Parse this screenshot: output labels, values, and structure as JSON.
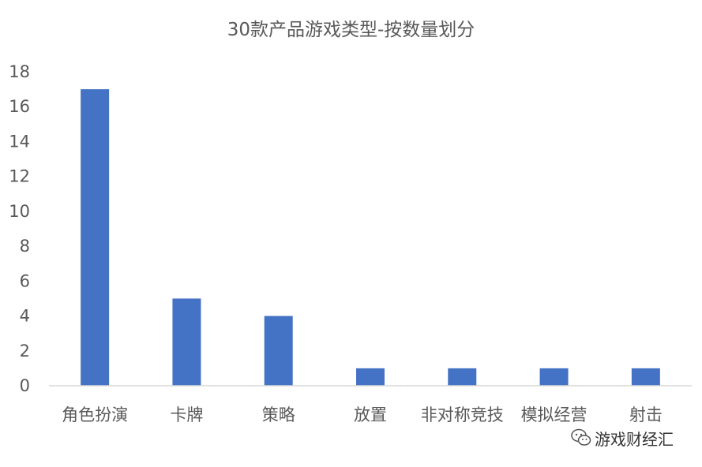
{
  "chart_data": {
    "type": "bar",
    "title": "30款产品游戏类型-按数量划分",
    "categories": [
      "角色扮演",
      "卡牌",
      "策略",
      "放置",
      "非对称竞技",
      "模拟经营",
      "射击"
    ],
    "values": [
      17,
      5,
      4,
      1,
      1,
      1,
      1
    ],
    "ylim": [
      0,
      18
    ],
    "yticks": [
      0,
      2,
      4,
      6,
      8,
      10,
      12,
      14,
      16,
      18
    ],
    "grid": false,
    "bar_color": "#4472C4",
    "axis_color": "#D9D9D9"
  },
  "watermark": {
    "text": "游戏财经汇",
    "icon": "wechat-icon"
  }
}
